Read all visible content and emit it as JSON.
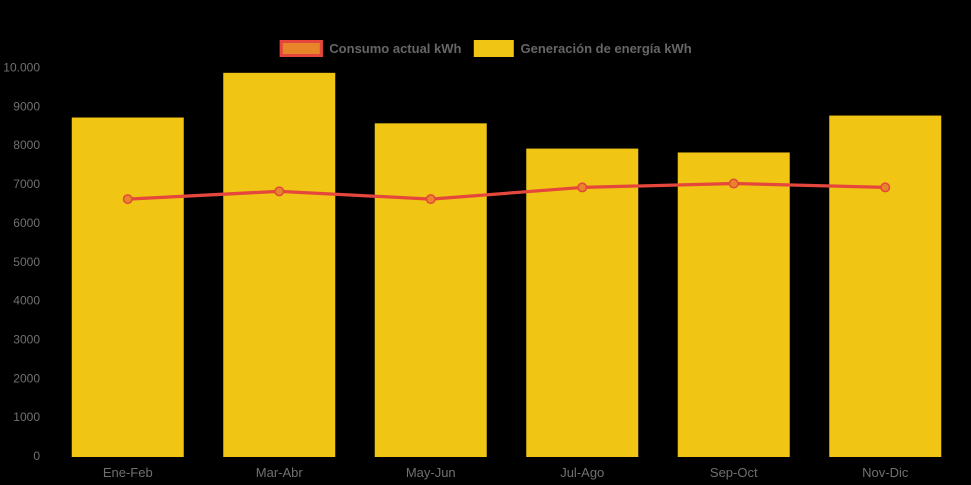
{
  "colors": {
    "background": "#000000",
    "bar_fill": "#F0C513",
    "line_stroke": "#E5473C",
    "marker_fill": "#E8842A",
    "axis_label": "#707070",
    "legend_label": "#666666"
  },
  "legend": {
    "items": [
      {
        "label": "Consumo actual kWh",
        "type": "line",
        "fill": "#E8842A",
        "border": "#E5473C"
      },
      {
        "label": "Generación de energía kWh",
        "type": "bar",
        "fill": "#F0C513",
        "border": null
      }
    ]
  },
  "chart_data": {
    "type": "bar",
    "subtype": "bar-and-line-combo",
    "title": "",
    "xlabel": "",
    "ylabel": "",
    "categories": [
      "Ene-Feb",
      "Mar-Abr",
      "May-Jun",
      "Jul-Ago",
      "Sep-Oct",
      "Nov-Dic"
    ],
    "series": [
      {
        "name": "Generación de energía kWh",
        "type": "bar",
        "color": "#F0C513",
        "values": [
          8700,
          9850,
          8550,
          7900,
          7800,
          8750
        ]
      },
      {
        "name": "Consumo actual kWh",
        "type": "line",
        "color": "#E5473C",
        "marker_fill": "#E8842A",
        "values": [
          6600,
          6800,
          6600,
          6900,
          7000,
          6900
        ]
      }
    ],
    "ylim": [
      0,
      10000
    ],
    "y_ticks": [
      {
        "value": 0,
        "label": "0"
      },
      {
        "value": 1000,
        "label": "1000"
      },
      {
        "value": 2000,
        "label": "2000"
      },
      {
        "value": 3000,
        "label": "3000"
      },
      {
        "value": 4000,
        "label": "4000"
      },
      {
        "value": 5000,
        "label": "5000"
      },
      {
        "value": 6000,
        "label": "6000"
      },
      {
        "value": 7000,
        "label": "7000"
      },
      {
        "value": 8000,
        "label": "8000"
      },
      {
        "value": 9000,
        "label": "9000"
      },
      {
        "value": 10000,
        "label": "10.000"
      }
    ],
    "grid": false,
    "legend_position": "top-center"
  }
}
